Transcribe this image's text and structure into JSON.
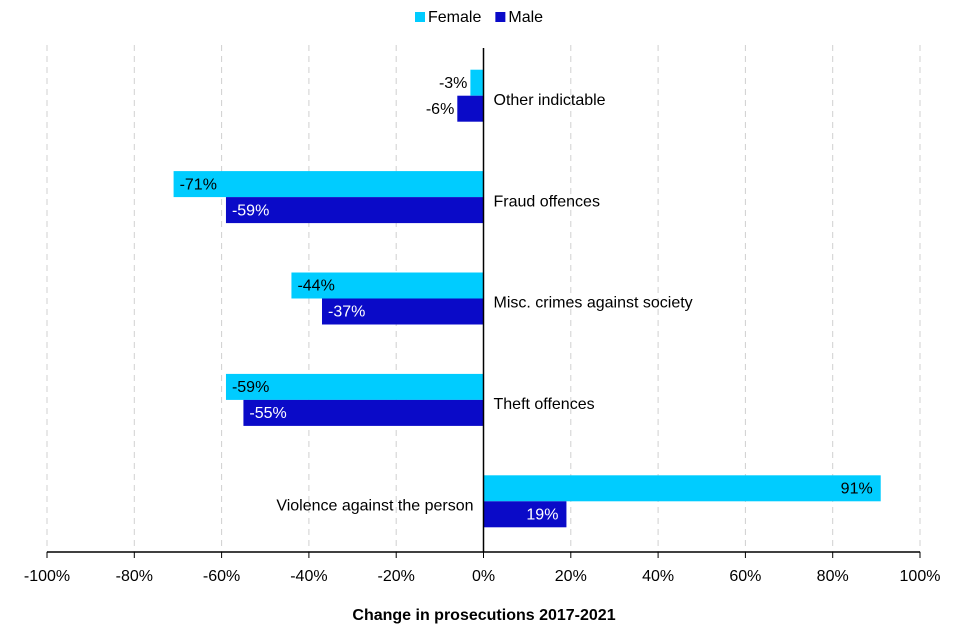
{
  "chart_data": {
    "type": "bar",
    "orientation": "horizontal",
    "x_label": "Change in prosecutions 2017-2021",
    "categories": [
      "Other indictable",
      "Fraud offences",
      "Misc. crimes against society",
      "Theft offences",
      "Violence against the person"
    ],
    "series": [
      {
        "name": "Female",
        "color": "#00ccff",
        "values": [
          -3,
          -71,
          -44,
          -59,
          91
        ],
        "value_labels": [
          "-3%",
          "-71%",
          "-44%",
          "-59%",
          "91%"
        ]
      },
      {
        "name": "Male",
        "color": "#0a0ac8",
        "values": [
          -6,
          -59,
          -37,
          -55,
          19
        ],
        "value_labels": [
          "-6%",
          "-59%",
          "-37%",
          "-55%",
          "19%"
        ]
      }
    ],
    "xlim": [
      -100,
      100
    ],
    "xticks": [
      {
        "value": -100,
        "label": "-100%"
      },
      {
        "value": -80,
        "label": "-80%"
      },
      {
        "value": -60,
        "label": "-60%"
      },
      {
        "value": -40,
        "label": "-40%"
      },
      {
        "value": -20,
        "label": "-20%"
      },
      {
        "value": 0,
        "label": "0%"
      },
      {
        "value": 20,
        "label": "20%"
      },
      {
        "value": 40,
        "label": "40%"
      },
      {
        "value": 60,
        "label": "60%"
      },
      {
        "value": 80,
        "label": "80%"
      },
      {
        "value": 100,
        "label": "100%"
      }
    ],
    "grid": true,
    "legend": "top"
  }
}
